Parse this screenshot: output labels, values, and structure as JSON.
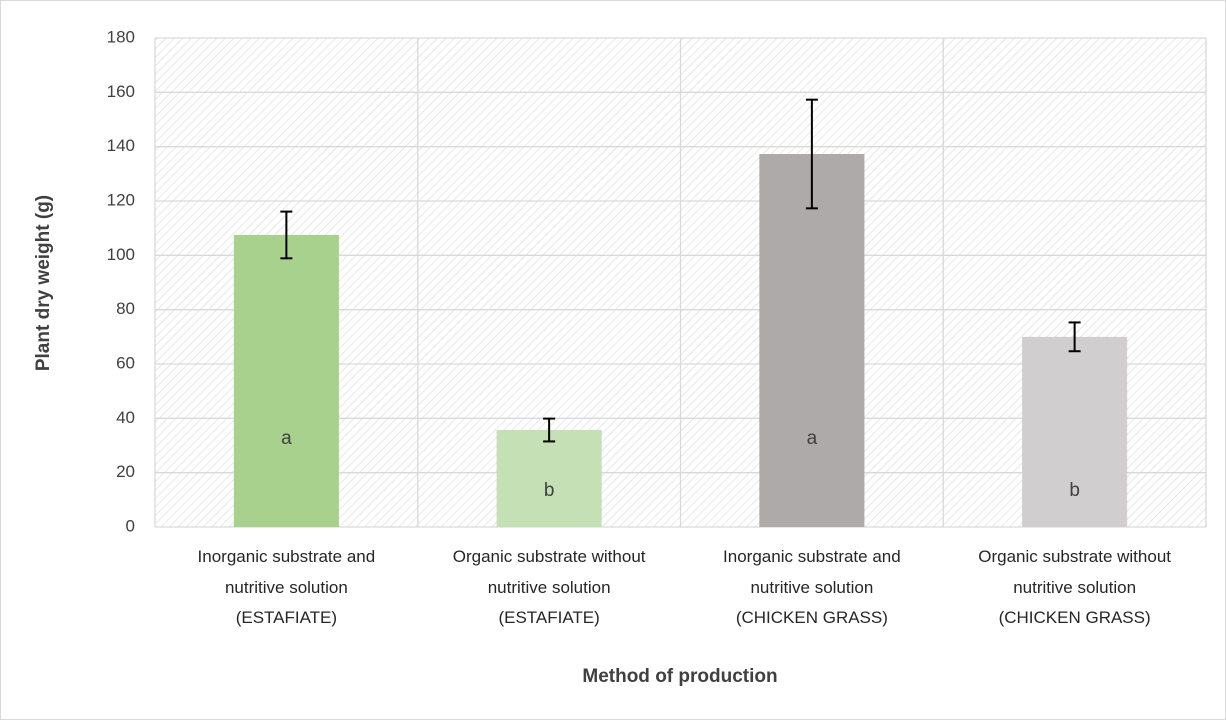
{
  "chart_data": {
    "type": "bar",
    "x_label": "Method of production",
    "y_label": "Plant dry weight (g)",
    "categories": [
      "Inorganic substrate and\nnutritive solution\n(ESTAFIATE)",
      "Organic substrate without\nnutritive solution\n(ESTAFIATE)",
      "Inorganic substrate and\nnutritive solution\n(CHICKEN GRASS)",
      "Organic substrate without\nnutritive solution\n(CHICKEN GRASS)"
    ],
    "values": [
      107.5,
      35.7,
      137.3,
      70
    ],
    "errors": [
      8.6,
      4.2,
      20,
      5.3
    ],
    "annotations": [
      "a",
      "b",
      "a",
      "b"
    ],
    "colors": [
      "#a9d18e",
      "#c5e0b4",
      "#aeaaaa",
      "#d0cece"
    ],
    "ylim": [
      0,
      180
    ],
    "yticks": [
      0,
      20,
      40,
      60,
      80,
      100,
      120,
      140,
      160,
      180
    ],
    "grid": true,
    "x_grid": true
  }
}
